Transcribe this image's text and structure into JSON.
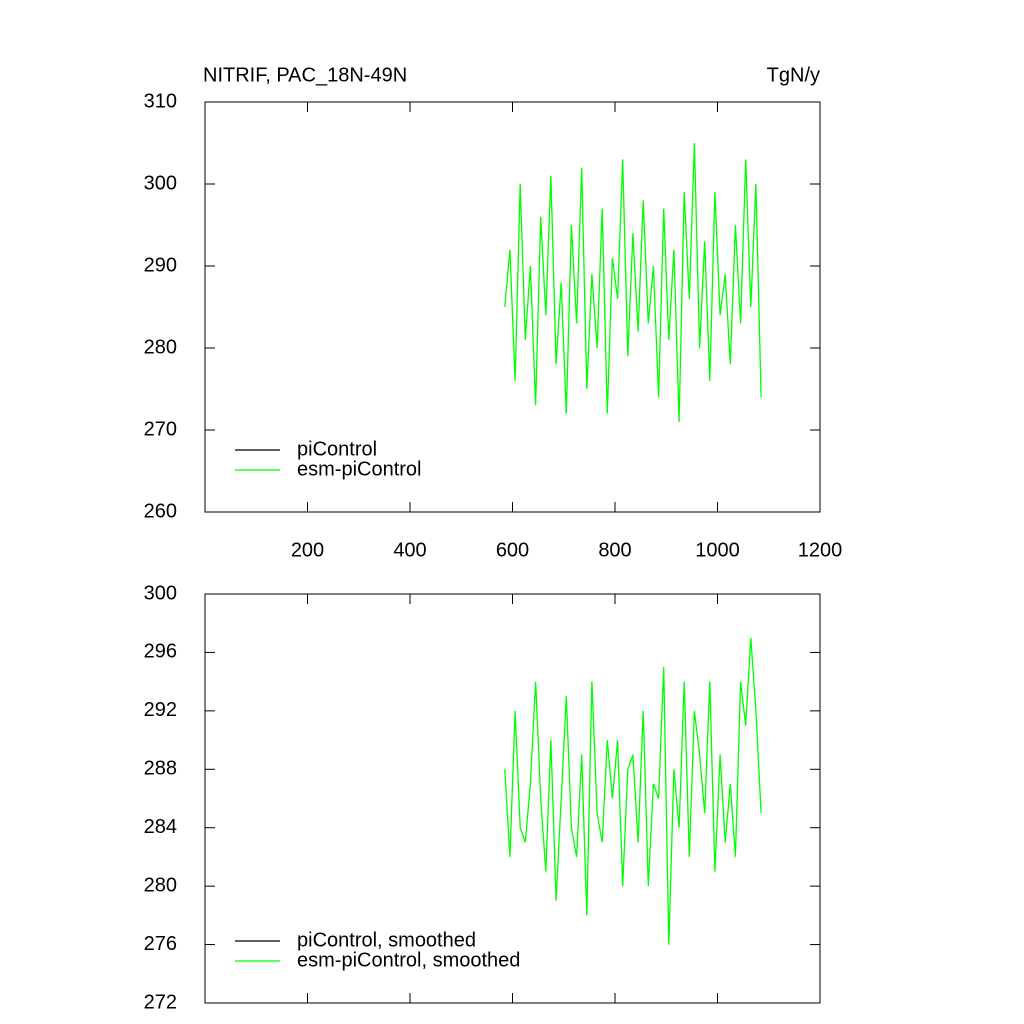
{
  "chart_data": [
    {
      "type": "line",
      "title": "NITRIF, PAC_18N-49N",
      "units": "TgN/y",
      "x": [
        585,
        595,
        605,
        615,
        625,
        635,
        645,
        655,
        665,
        675,
        685,
        695,
        705,
        715,
        725,
        735,
        745,
        755,
        765,
        775,
        785,
        795,
        805,
        815,
        825,
        835,
        845,
        855,
        865,
        875,
        885,
        895,
        905,
        915,
        925,
        935,
        945,
        955,
        965,
        975,
        985,
        995,
        1005,
        1015,
        1025,
        1035,
        1045,
        1055,
        1065,
        1075,
        1085
      ],
      "series": [
        {
          "name": "piControl",
          "color": "#000000",
          "values": [
            null,
            null,
            null,
            null,
            null,
            null,
            null,
            null,
            null,
            null,
            null,
            null,
            null,
            null,
            null,
            null,
            null,
            null,
            null,
            null,
            null,
            null,
            null,
            null,
            null,
            null,
            null,
            null,
            null,
            null,
            null,
            null,
            null,
            null,
            null,
            null,
            null,
            null,
            null,
            null,
            null,
            null,
            null,
            null,
            null,
            null,
            null,
            null,
            null,
            null,
            null
          ]
        },
        {
          "name": "esm-piControl",
          "color": "#00ff00",
          "values": [
            285,
            292,
            276,
            300,
            281,
            290,
            273,
            296,
            284,
            301,
            278,
            288,
            272,
            295,
            283,
            302,
            275,
            289,
            280,
            297,
            272,
            291,
            286,
            303,
            279,
            294,
            282,
            298,
            283,
            290,
            274,
            297,
            281,
            292,
            271,
            299,
            286,
            305,
            280,
            293,
            276,
            299,
            284,
            289,
            278,
            295,
            283,
            303,
            285,
            300,
            274
          ]
        }
      ],
      "xlim": [
        0,
        1200
      ],
      "xticks": [
        200,
        400,
        600,
        800,
        1000,
        1200
      ],
      "ylim": [
        260,
        310
      ],
      "yticks": [
        260,
        270,
        280,
        290,
        300,
        310
      ],
      "legend": "lower left"
    },
    {
      "type": "line",
      "x": [
        585,
        595,
        605,
        615,
        625,
        635,
        645,
        655,
        665,
        675,
        685,
        695,
        705,
        715,
        725,
        735,
        745,
        755,
        765,
        775,
        785,
        795,
        805,
        815,
        825,
        835,
        845,
        855,
        865,
        875,
        885,
        895,
        905,
        915,
        925,
        935,
        945,
        955,
        965,
        975,
        985,
        995,
        1005,
        1015,
        1025,
        1035,
        1045,
        1055,
        1065,
        1075,
        1085
      ],
      "series": [
        {
          "name": "piControl, smoothed",
          "color": "#000000",
          "values": [
            null,
            null,
            null,
            null,
            null,
            null,
            null,
            null,
            null,
            null,
            null,
            null,
            null,
            null,
            null,
            null,
            null,
            null,
            null,
            null,
            null,
            null,
            null,
            null,
            null,
            null,
            null,
            null,
            null,
            null,
            null,
            null,
            null,
            null,
            null,
            null,
            null,
            null,
            null,
            null,
            null,
            null,
            null,
            null,
            null,
            null,
            null,
            null,
            null,
            null,
            null
          ]
        },
        {
          "name": "esm-piControl, smoothed",
          "color": "#00ff00",
          "values": [
            288,
            282,
            292,
            284,
            283,
            287,
            294,
            286,
            281,
            290,
            279,
            286,
            293,
            284,
            282,
            289,
            278,
            294,
            285,
            283,
            290,
            286,
            290,
            280,
            288,
            289,
            283,
            292,
            280,
            287,
            286,
            295,
            276,
            288,
            284,
            294,
            282,
            292,
            289,
            285,
            294,
            281,
            289,
            283,
            287,
            282,
            294,
            291,
            297,
            292,
            285
          ]
        }
      ],
      "xlim": [
        0,
        1200
      ],
      "xticks": [
        200,
        400,
        600,
        800,
        1000,
        1200
      ],
      "ylim": [
        272,
        300
      ],
      "yticks": [
        272,
        276,
        280,
        284,
        288,
        292,
        296,
        300
      ],
      "legend": "lower left"
    }
  ]
}
